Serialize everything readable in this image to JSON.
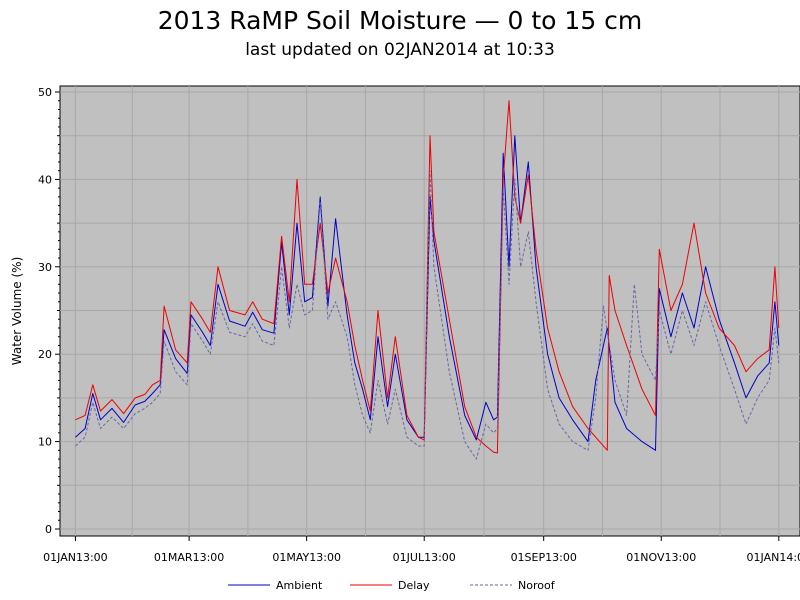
{
  "title": "2013 RaMP Soil Moisture — 0 to 15 cm",
  "subtitle": "last updated on 02JAN2014 at 10:33",
  "colors": {
    "plot_background": "#c0c0c0",
    "grid": "#a8a8a8",
    "ambient": "#0000cc",
    "delay": "#ee0000",
    "noroof": "#6666aa"
  },
  "chart_data": {
    "type": "line",
    "title": "2013 RaMP Soil Moisture — 0 to 15 cm",
    "subtitle": "last updated on 02JAN2014 at 10:33",
    "xlabel": "",
    "ylabel": "Water Volume (%)",
    "ylim": [
      0,
      50
    ],
    "yticks": [
      "0",
      "10",
      "20",
      "30",
      "40",
      "50"
    ],
    "xlim": [
      "2012-12-24",
      "2014-01-12"
    ],
    "xticks": [
      {
        "date": "2013-01-01",
        "label": "01JAN13:00"
      },
      {
        "date": "2013-03-01",
        "label": "01MAR13:00"
      },
      {
        "date": "2013-05-01",
        "label": "01MAY13:00"
      },
      {
        "date": "2013-07-01",
        "label": "01JUL13:00"
      },
      {
        "date": "2013-09-01",
        "label": "01SEP13:00"
      },
      {
        "date": "2013-11-01",
        "label": "01NOV13:00"
      },
      {
        "date": "2014-01-01",
        "label": "01JAN14:00"
      }
    ],
    "grid": true,
    "legend_position": "bottom",
    "series": [
      {
        "name": "Ambient",
        "style": "solid",
        "points": [
          [
            "2013-01-01",
            10.5
          ],
          [
            "2013-01-06",
            11.5
          ],
          [
            "2013-01-10",
            15.5
          ],
          [
            "2013-01-14",
            12.5
          ],
          [
            "2013-01-20",
            13.8
          ],
          [
            "2013-01-26",
            12.2
          ],
          [
            "2013-02-01",
            14.2
          ],
          [
            "2013-02-06",
            14.6
          ],
          [
            "2013-02-10",
            15.5
          ],
          [
            "2013-02-14",
            16.5
          ],
          [
            "2013-02-16",
            22.8
          ],
          [
            "2013-02-22",
            19.5
          ],
          [
            "2013-02-28",
            17.8
          ],
          [
            "2013-03-02",
            24.5
          ],
          [
            "2013-03-08",
            22.5
          ],
          [
            "2013-03-12",
            21.0
          ],
          [
            "2013-03-16",
            28.0
          ],
          [
            "2013-03-22",
            23.8
          ],
          [
            "2013-03-30",
            23.2
          ],
          [
            "2013-04-03",
            24.8
          ],
          [
            "2013-04-08",
            22.8
          ],
          [
            "2013-04-14",
            22.4
          ],
          [
            "2013-04-18",
            32.8
          ],
          [
            "2013-04-22",
            24.5
          ],
          [
            "2013-04-26",
            35.0
          ],
          [
            "2013-04-30",
            26.0
          ],
          [
            "2013-05-04",
            26.5
          ],
          [
            "2013-05-08",
            38.0
          ],
          [
            "2013-05-12",
            25.5
          ],
          [
            "2013-05-16",
            35.5
          ],
          [
            "2013-05-22",
            24.5
          ],
          [
            "2013-05-26",
            19.0
          ],
          [
            "2013-05-30",
            16.0
          ],
          [
            "2013-06-03",
            12.5
          ],
          [
            "2013-06-07",
            22.0
          ],
          [
            "2013-06-12",
            14.0
          ],
          [
            "2013-06-16",
            20.0
          ],
          [
            "2013-06-22",
            12.5
          ],
          [
            "2013-06-28",
            10.5
          ],
          [
            "2013-07-01",
            10.5
          ],
          [
            "2013-07-04",
            38.0
          ],
          [
            "2013-07-06",
            33.0
          ],
          [
            "2013-07-14",
            22.0
          ],
          [
            "2013-07-22",
            13.0
          ],
          [
            "2013-07-28",
            10.2
          ],
          [
            "2013-08-02",
            14.5
          ],
          [
            "2013-08-06",
            12.5
          ],
          [
            "2013-08-08",
            12.8
          ],
          [
            "2013-08-11",
            43.0
          ],
          [
            "2013-08-14",
            30.0
          ],
          [
            "2013-08-17",
            45.0
          ],
          [
            "2013-08-20",
            35.0
          ],
          [
            "2013-08-24",
            42.0
          ],
          [
            "2013-08-28",
            30.0
          ],
          [
            "2013-09-03",
            20.0
          ],
          [
            "2013-09-09",
            15.0
          ],
          [
            "2013-09-16",
            12.5
          ],
          [
            "2013-09-24",
            10.0
          ],
          [
            "2013-09-28",
            17.0
          ],
          [
            "2013-10-04",
            23.0
          ],
          [
            "2013-10-08",
            14.5
          ],
          [
            "2013-10-14",
            11.5
          ],
          [
            "2013-10-22",
            10.0
          ],
          [
            "2013-10-29",
            9.0
          ],
          [
            "2013-10-31",
            27.5
          ],
          [
            "2013-11-06",
            22.0
          ],
          [
            "2013-11-12",
            27.0
          ],
          [
            "2013-11-18",
            23.0
          ],
          [
            "2013-11-24",
            30.0
          ],
          [
            "2013-12-01",
            24.0
          ],
          [
            "2013-12-09",
            19.0
          ],
          [
            "2013-12-15",
            15.0
          ],
          [
            "2013-12-21",
            17.5
          ],
          [
            "2013-12-27",
            19.0
          ],
          [
            "2013-12-30",
            26.0
          ],
          [
            "2014-01-01",
            21.0
          ]
        ]
      },
      {
        "name": "Delay",
        "style": "solid",
        "points": [
          [
            "2013-01-01",
            12.5
          ],
          [
            "2013-01-06",
            13.0
          ],
          [
            "2013-01-10",
            16.5
          ],
          [
            "2013-01-14",
            13.5
          ],
          [
            "2013-01-20",
            14.8
          ],
          [
            "2013-01-26",
            13.2
          ],
          [
            "2013-02-01",
            15.0
          ],
          [
            "2013-02-06",
            15.4
          ],
          [
            "2013-02-10",
            16.5
          ],
          [
            "2013-02-14",
            17.0
          ],
          [
            "2013-02-16",
            25.5
          ],
          [
            "2013-02-22",
            20.5
          ],
          [
            "2013-02-28",
            19.0
          ],
          [
            "2013-03-02",
            26.0
          ],
          [
            "2013-03-08",
            24.0
          ],
          [
            "2013-03-12",
            22.5
          ],
          [
            "2013-03-16",
            30.0
          ],
          [
            "2013-03-22",
            25.0
          ],
          [
            "2013-03-30",
            24.5
          ],
          [
            "2013-04-03",
            26.0
          ],
          [
            "2013-04-08",
            24.0
          ],
          [
            "2013-04-14",
            23.5
          ],
          [
            "2013-04-18",
            33.5
          ],
          [
            "2013-04-22",
            26.0
          ],
          [
            "2013-04-26",
            40.0
          ],
          [
            "2013-04-30",
            28.0
          ],
          [
            "2013-05-04",
            28.0
          ],
          [
            "2013-05-08",
            35.0
          ],
          [
            "2013-05-12",
            27.0
          ],
          [
            "2013-05-16",
            31.0
          ],
          [
            "2013-05-22",
            26.0
          ],
          [
            "2013-05-26",
            21.0
          ],
          [
            "2013-05-30",
            17.0
          ],
          [
            "2013-06-03",
            13.5
          ],
          [
            "2013-06-07",
            25.0
          ],
          [
            "2013-06-12",
            15.0
          ],
          [
            "2013-06-16",
            22.0
          ],
          [
            "2013-06-22",
            13.0
          ],
          [
            "2013-06-28",
            10.5
          ],
          [
            "2013-07-01",
            10.2
          ],
          [
            "2013-07-04",
            45.0
          ],
          [
            "2013-07-06",
            34.0
          ],
          [
            "2013-07-14",
            24.0
          ],
          [
            "2013-07-22",
            14.0
          ],
          [
            "2013-07-28",
            10.5
          ],
          [
            "2013-08-02",
            9.5
          ],
          [
            "2013-08-06",
            8.8
          ],
          [
            "2013-08-08",
            8.7
          ],
          [
            "2013-08-11",
            40.0
          ],
          [
            "2013-08-14",
            49.0
          ],
          [
            "2013-08-17",
            38.0
          ],
          [
            "2013-08-20",
            35.0
          ],
          [
            "2013-08-24",
            40.5
          ],
          [
            "2013-08-28",
            32.0
          ],
          [
            "2013-09-03",
            23.0
          ],
          [
            "2013-09-09",
            18.0
          ],
          [
            "2013-09-16",
            14.0
          ],
          [
            "2013-09-24",
            11.5
          ],
          [
            "2013-09-28",
            10.5
          ],
          [
            "2013-10-04",
            9.0
          ],
          [
            "2013-10-05",
            29.0
          ],
          [
            "2013-10-08",
            25.0
          ],
          [
            "2013-10-14",
            21.0
          ],
          [
            "2013-10-22",
            16.0
          ],
          [
            "2013-10-29",
            13.0
          ],
          [
            "2013-10-31",
            32.0
          ],
          [
            "2013-11-06",
            25.0
          ],
          [
            "2013-11-12",
            28.0
          ],
          [
            "2013-11-18",
            35.0
          ],
          [
            "2013-11-24",
            27.0
          ],
          [
            "2013-12-01",
            23.0
          ],
          [
            "2013-12-09",
            21.0
          ],
          [
            "2013-12-15",
            18.0
          ],
          [
            "2013-12-21",
            19.5
          ],
          [
            "2013-12-27",
            20.5
          ],
          [
            "2013-12-30",
            30.0
          ],
          [
            "2014-01-01",
            23.0
          ]
        ]
      },
      {
        "name": "Noroof",
        "style": "dashed",
        "points": [
          [
            "2013-01-01",
            9.5
          ],
          [
            "2013-01-06",
            10.5
          ],
          [
            "2013-01-10",
            14.5
          ],
          [
            "2013-01-14",
            11.5
          ],
          [
            "2013-01-20",
            12.8
          ],
          [
            "2013-01-26",
            11.5
          ],
          [
            "2013-02-01",
            13.2
          ],
          [
            "2013-02-06",
            13.8
          ],
          [
            "2013-02-10",
            14.5
          ],
          [
            "2013-02-14",
            15.5
          ],
          [
            "2013-02-16",
            21.5
          ],
          [
            "2013-02-22",
            18.0
          ],
          [
            "2013-02-28",
            16.5
          ],
          [
            "2013-03-02",
            23.5
          ],
          [
            "2013-03-08",
            21.5
          ],
          [
            "2013-03-12",
            20.0
          ],
          [
            "2013-03-16",
            26.0
          ],
          [
            "2013-03-22",
            22.5
          ],
          [
            "2013-03-30",
            22.0
          ],
          [
            "2013-04-03",
            23.5
          ],
          [
            "2013-04-08",
            21.5
          ],
          [
            "2013-04-14",
            21.0
          ],
          [
            "2013-04-18",
            30.0
          ],
          [
            "2013-04-22",
            23.0
          ],
          [
            "2013-04-26",
            28.0
          ],
          [
            "2013-04-30",
            24.5
          ],
          [
            "2013-05-04",
            25.0
          ],
          [
            "2013-05-08",
            37.5
          ],
          [
            "2013-05-12",
            24.0
          ],
          [
            "2013-05-16",
            26.0
          ],
          [
            "2013-05-22",
            22.0
          ],
          [
            "2013-05-26",
            16.5
          ],
          [
            "2013-05-30",
            13.0
          ],
          [
            "2013-06-03",
            11.0
          ],
          [
            "2013-06-07",
            17.0
          ],
          [
            "2013-06-12",
            12.0
          ],
          [
            "2013-06-16",
            16.0
          ],
          [
            "2013-06-22",
            10.5
          ],
          [
            "2013-06-28",
            9.5
          ],
          [
            "2013-07-01",
            9.5
          ],
          [
            "2013-07-04",
            41.0
          ],
          [
            "2013-07-06",
            30.0
          ],
          [
            "2013-07-14",
            18.0
          ],
          [
            "2013-07-22",
            10.0
          ],
          [
            "2013-07-28",
            8.0
          ],
          [
            "2013-08-02",
            12.0
          ],
          [
            "2013-08-06",
            11.0
          ],
          [
            "2013-08-08",
            11.5
          ],
          [
            "2013-08-11",
            39.0
          ],
          [
            "2013-08-14",
            28.0
          ],
          [
            "2013-08-17",
            40.0
          ],
          [
            "2013-08-20",
            30.0
          ],
          [
            "2013-08-24",
            34.0
          ],
          [
            "2013-08-28",
            26.0
          ],
          [
            "2013-09-03",
            16.0
          ],
          [
            "2013-09-09",
            12.0
          ],
          [
            "2013-09-16",
            10.0
          ],
          [
            "2013-09-24",
            9.0
          ],
          [
            "2013-09-28",
            15.0
          ],
          [
            "2013-10-02",
            25.5
          ],
          [
            "2013-10-08",
            17.0
          ],
          [
            "2013-10-14",
            13.0
          ],
          [
            "2013-10-18",
            28.0
          ],
          [
            "2013-10-22",
            20.0
          ],
          [
            "2013-10-29",
            17.0
          ],
          [
            "2013-10-31",
            25.0
          ],
          [
            "2013-11-06",
            20.0
          ],
          [
            "2013-11-12",
            25.0
          ],
          [
            "2013-11-18",
            21.0
          ],
          [
            "2013-11-24",
            26.0
          ],
          [
            "2013-12-01",
            21.0
          ],
          [
            "2013-12-09",
            16.0
          ],
          [
            "2013-12-15",
            12.0
          ],
          [
            "2013-12-21",
            15.0
          ],
          [
            "2013-12-27",
            17.0
          ],
          [
            "2013-12-30",
            23.0
          ],
          [
            "2014-01-01",
            19.0
          ]
        ]
      }
    ]
  }
}
